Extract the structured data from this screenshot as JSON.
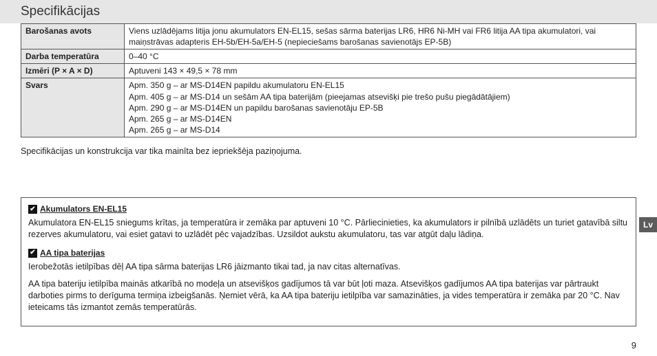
{
  "page": {
    "title": "Specifikācijas",
    "note": "Specifikācijas un konstrukcija var tika mainīta bez iepriekšēja paziņojuma.",
    "lang_tab": "Lv",
    "page_number": "9"
  },
  "table": {
    "rows": {
      "power_label": "Barošanas avots",
      "power_value": "Viens uzlādējams litija jonu akumulators EN-EL15, sešas sārma baterijas LR6, HR6 Ni-MH vai FR6 litija AA tipa akumulatori, vai maiņstrāvas adapteris EH-5b/EH-5a/EH-5 (nepieciešams barošanas savienotājs EP-5B)",
      "temp_label": "Darba temperatūra",
      "temp_value": "0–40 °C",
      "dim_label": "Izmēri (P × A × D)",
      "dim_value": "Aptuveni 143 × 49,5 × 78 mm",
      "weight_label": "Svars",
      "weight_values": {
        "w1": "Apm. 350 g – ar MS-D14EN papildu akumulatoru EN-EL15",
        "w2": "Apm. 405 g – ar MS-D14 un sešām AA tipa baterijām (pieejamas atsevišķi pie trešo pušu piegādātājiem)",
        "w3": "Apm. 290 g – ar MS-D14EN un papildu barošanas savienotāju EP-5B",
        "w4": "Apm. 265 g – ar MS-D14EN",
        "w5": "Apm. 265 g – ar MS-D14"
      }
    }
  },
  "info": {
    "section1": {
      "title": "Akumulators EN-EL15",
      "text": "Akumulatora EN-EL15 sniegums krītas, ja temperatūra ir zemāka par aptuveni 10 °C. Pārliecinieties, ka akumulators ir pilnībā uzlādēts un turiet gatavībā siltu rezerves akumulatoru, vai esiet gatavi to uzlādēt pēc vajadzības. Uzsildot aukstu akumulatoru, tas var atgūt daļu lādiņa."
    },
    "section2": {
      "title": "AA tipa baterijas",
      "text1": "Ierobežotās ietilpības dēļ AA tipa sārma baterijas LR6 jāizmanto tikai tad, ja nav citas alternatīvas.",
      "text2": "AA tipa bateriju ietilpība mainās atkarībā no modeļa un atsevišķos gadījumos tā var būt ļoti maza. Atsevišķos gadījumos AA tipa baterijas var pārtraukt darboties pirms to derīguma termiņa izbeigšanās. Ņemiet vērā, ka AA tipa bateriju ietilpība var samazināties, ja vides temperatūra ir zemāka par 20 °C. Nav ieteicams tās izmantot zemās temperatūrās."
    }
  },
  "icons": {
    "check": "✔"
  }
}
